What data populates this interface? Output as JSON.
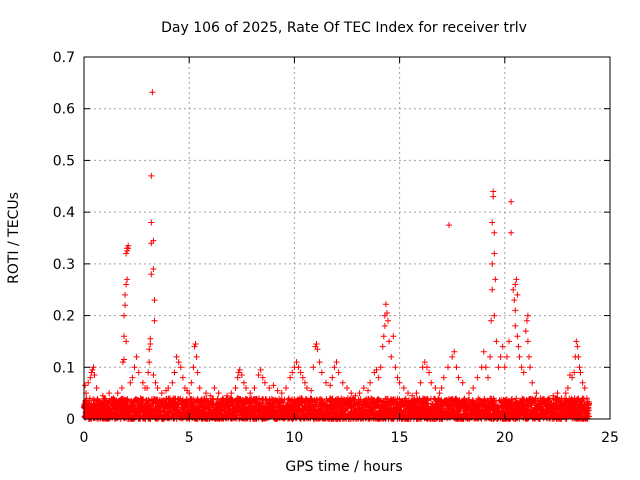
{
  "chart_data": {
    "type": "scatter",
    "title": "Day 106 of 2025, Rate Of TEC Index for receiver trlv",
    "xlabel": "GPS time / hours",
    "ylabel": "ROTI / TECUs",
    "xlim": [
      0,
      25
    ],
    "ylim": [
      0,
      0.7
    ],
    "xticks": [
      0,
      5,
      10,
      15,
      20,
      25
    ],
    "xtick_labels": [
      "0",
      "5",
      "10",
      "15",
      "20",
      "25"
    ],
    "yticks": [
      0,
      0.1,
      0.2,
      0.3,
      0.4,
      0.5,
      0.6,
      0.7
    ],
    "ytick_labels": [
      "0",
      "0.1",
      "0.2",
      "0.3",
      "0.4",
      "0.5",
      "0.6",
      "0.7"
    ],
    "grid": true,
    "marker": "+",
    "color": "#ff0000",
    "x_coverage": [
      0,
      24
    ],
    "baseline_band": [
      0.0,
      0.04
    ],
    "points": [
      [
        0.05,
        0.065
      ],
      [
        0.1,
        0.05
      ],
      [
        0.2,
        0.07
      ],
      [
        0.3,
        0.08
      ],
      [
        0.35,
        0.09
      ],
      [
        0.4,
        0.095
      ],
      [
        0.45,
        0.1
      ],
      [
        0.5,
        0.085
      ],
      [
        0.6,
        0.06
      ],
      [
        0.9,
        0.045
      ],
      [
        1.2,
        0.05
      ],
      [
        1.4,
        0.04
      ],
      [
        1.6,
        0.05
      ],
      [
        1.8,
        0.06
      ],
      [
        1.85,
        0.11
      ],
      [
        1.9,
        0.16
      ],
      [
        1.9,
        0.2
      ],
      [
        1.95,
        0.22
      ],
      [
        1.95,
        0.24
      ],
      [
        2.0,
        0.26
      ],
      [
        2.0,
        0.32
      ],
      [
        2.05,
        0.33
      ],
      [
        2.05,
        0.325
      ],
      [
        2.1,
        0.335
      ],
      [
        2.1,
        0.33
      ],
      [
        2.05,
        0.27
      ],
      [
        2.0,
        0.15
      ],
      [
        1.9,
        0.115
      ],
      [
        2.2,
        0.07
      ],
      [
        2.3,
        0.08
      ],
      [
        2.4,
        0.1
      ],
      [
        2.5,
        0.12
      ],
      [
        2.6,
        0.09
      ],
      [
        2.8,
        0.07
      ],
      [
        2.9,
        0.06
      ],
      [
        3.0,
        0.06
      ],
      [
        3.05,
        0.09
      ],
      [
        3.1,
        0.11
      ],
      [
        3.1,
        0.135
      ],
      [
        3.15,
        0.145
      ],
      [
        3.15,
        0.155
      ],
      [
        3.2,
        0.28
      ],
      [
        3.2,
        0.34
      ],
      [
        3.2,
        0.38
      ],
      [
        3.2,
        0.47
      ],
      [
        3.25,
        0.632
      ],
      [
        3.3,
        0.29
      ],
      [
        3.3,
        0.345
      ],
      [
        3.35,
        0.23
      ],
      [
        3.35,
        0.19
      ],
      [
        3.3,
        0.085
      ],
      [
        3.4,
        0.07
      ],
      [
        3.5,
        0.06
      ],
      [
        3.7,
        0.05
      ],
      [
        3.9,
        0.055
      ],
      [
        4.0,
        0.06
      ],
      [
        4.2,
        0.07
      ],
      [
        4.3,
        0.09
      ],
      [
        4.4,
        0.12
      ],
      [
        4.5,
        0.11
      ],
      [
        4.6,
        0.1
      ],
      [
        4.7,
        0.08
      ],
      [
        4.8,
        0.06
      ],
      [
        4.9,
        0.055
      ],
      [
        5.0,
        0.05
      ],
      [
        5.1,
        0.07
      ],
      [
        5.2,
        0.1
      ],
      [
        5.25,
        0.14
      ],
      [
        5.3,
        0.145
      ],
      [
        5.35,
        0.12
      ],
      [
        5.4,
        0.09
      ],
      [
        5.5,
        0.06
      ],
      [
        5.8,
        0.05
      ],
      [
        6.0,
        0.045
      ],
      [
        6.2,
        0.06
      ],
      [
        6.4,
        0.05
      ],
      [
        6.6,
        0.04
      ],
      [
        6.8,
        0.045
      ],
      [
        7.0,
        0.05
      ],
      [
        7.2,
        0.06
      ],
      [
        7.3,
        0.08
      ],
      [
        7.35,
        0.09
      ],
      [
        7.4,
        0.095
      ],
      [
        7.5,
        0.085
      ],
      [
        7.6,
        0.07
      ],
      [
        7.7,
        0.06
      ],
      [
        7.9,
        0.05
      ],
      [
        8.1,
        0.06
      ],
      [
        8.3,
        0.085
      ],
      [
        8.4,
        0.095
      ],
      [
        8.5,
        0.08
      ],
      [
        8.6,
        0.07
      ],
      [
        8.8,
        0.06
      ],
      [
        9.0,
        0.065
      ],
      [
        9.2,
        0.055
      ],
      [
        9.4,
        0.05
      ],
      [
        9.6,
        0.06
      ],
      [
        9.8,
        0.08
      ],
      [
        9.9,
        0.09
      ],
      [
        10.0,
        0.1
      ],
      [
        10.1,
        0.11
      ],
      [
        10.2,
        0.1
      ],
      [
        10.3,
        0.09
      ],
      [
        10.4,
        0.08
      ],
      [
        10.5,
        0.07
      ],
      [
        10.6,
        0.06
      ],
      [
        10.8,
        0.055
      ],
      [
        10.9,
        0.1
      ],
      [
        11.0,
        0.14
      ],
      [
        11.05,
        0.145
      ],
      [
        11.1,
        0.135
      ],
      [
        11.2,
        0.11
      ],
      [
        11.3,
        0.09
      ],
      [
        11.5,
        0.07
      ],
      [
        11.7,
        0.065
      ],
      [
        11.8,
        0.08
      ],
      [
        11.9,
        0.1
      ],
      [
        12.0,
        0.11
      ],
      [
        12.1,
        0.09
      ],
      [
        12.3,
        0.07
      ],
      [
        12.5,
        0.06
      ],
      [
        12.7,
        0.05
      ],
      [
        12.9,
        0.045
      ],
      [
        13.1,
        0.05
      ],
      [
        13.3,
        0.06
      ],
      [
        13.5,
        0.055
      ],
      [
        13.6,
        0.07
      ],
      [
        13.8,
        0.09
      ],
      [
        13.9,
        0.095
      ],
      [
        14.0,
        0.08
      ],
      [
        14.1,
        0.1
      ],
      [
        14.2,
        0.14
      ],
      [
        14.25,
        0.16
      ],
      [
        14.3,
        0.18
      ],
      [
        14.3,
        0.2
      ],
      [
        14.35,
        0.222
      ],
      [
        14.4,
        0.205
      ],
      [
        14.45,
        0.19
      ],
      [
        14.5,
        0.15
      ],
      [
        14.6,
        0.12
      ],
      [
        14.7,
        0.16
      ],
      [
        14.8,
        0.1
      ],
      [
        14.9,
        0.08
      ],
      [
        15.0,
        0.07
      ],
      [
        15.2,
        0.06
      ],
      [
        15.4,
        0.05
      ],
      [
        15.6,
        0.045
      ],
      [
        15.8,
        0.05
      ],
      [
        16.0,
        0.07
      ],
      [
        16.1,
        0.1
      ],
      [
        16.2,
        0.11
      ],
      [
        16.3,
        0.1
      ],
      [
        16.4,
        0.09
      ],
      [
        16.5,
        0.07
      ],
      [
        16.7,
        0.06
      ],
      [
        16.9,
        0.05
      ],
      [
        17.0,
        0.06
      ],
      [
        17.1,
        0.08
      ],
      [
        17.3,
        0.1
      ],
      [
        17.35,
        0.375
      ],
      [
        17.5,
        0.12
      ],
      [
        17.6,
        0.13
      ],
      [
        17.7,
        0.1
      ],
      [
        17.8,
        0.08
      ],
      [
        18.0,
        0.07
      ],
      [
        18.3,
        0.05
      ],
      [
        18.5,
        0.06
      ],
      [
        18.7,
        0.08
      ],
      [
        18.9,
        0.1
      ],
      [
        19.0,
        0.13
      ],
      [
        19.1,
        0.1
      ],
      [
        19.2,
        0.08
      ],
      [
        19.3,
        0.12
      ],
      [
        19.35,
        0.19
      ],
      [
        19.4,
        0.25
      ],
      [
        19.4,
        0.3
      ],
      [
        19.4,
        0.38
      ],
      [
        19.45,
        0.43
      ],
      [
        19.45,
        0.44
      ],
      [
        19.5,
        0.36
      ],
      [
        19.5,
        0.32
      ],
      [
        19.55,
        0.27
      ],
      [
        19.5,
        0.2
      ],
      [
        19.6,
        0.15
      ],
      [
        19.7,
        0.1
      ],
      [
        19.8,
        0.12
      ],
      [
        19.9,
        0.14
      ],
      [
        20.0,
        0.1
      ],
      [
        20.1,
        0.12
      ],
      [
        20.2,
        0.15
      ],
      [
        20.3,
        0.36
      ],
      [
        20.3,
        0.42
      ],
      [
        20.4,
        0.25
      ],
      [
        20.45,
        0.23
      ],
      [
        20.5,
        0.26
      ],
      [
        20.5,
        0.21
      ],
      [
        20.5,
        0.18
      ],
      [
        20.55,
        0.27
      ],
      [
        20.6,
        0.24
      ],
      [
        20.6,
        0.16
      ],
      [
        20.65,
        0.14
      ],
      [
        20.7,
        0.12
      ],
      [
        20.8,
        0.1
      ],
      [
        20.9,
        0.09
      ],
      [
        21.0,
        0.17
      ],
      [
        21.05,
        0.19
      ],
      [
        21.1,
        0.2
      ],
      [
        21.1,
        0.15
      ],
      [
        21.15,
        0.12
      ],
      [
        21.2,
        0.1
      ],
      [
        21.3,
        0.07
      ],
      [
        21.5,
        0.05
      ],
      [
        21.7,
        0.04
      ],
      [
        21.9,
        0.035
      ],
      [
        22.1,
        0.04
      ],
      [
        22.3,
        0.045
      ],
      [
        22.5,
        0.05
      ],
      [
        22.7,
        0.04
      ],
      [
        22.9,
        0.05
      ],
      [
        23.0,
        0.06
      ],
      [
        23.1,
        0.085
      ],
      [
        23.2,
        0.08
      ],
      [
        23.3,
        0.09
      ],
      [
        23.35,
        0.12
      ],
      [
        23.4,
        0.15
      ],
      [
        23.45,
        0.14
      ],
      [
        23.5,
        0.12
      ],
      [
        23.55,
        0.1
      ],
      [
        23.6,
        0.09
      ],
      [
        23.7,
        0.07
      ],
      [
        23.8,
        0.06
      ],
      [
        23.9,
        0.04
      ],
      [
        24.0,
        0.03
      ]
    ]
  }
}
